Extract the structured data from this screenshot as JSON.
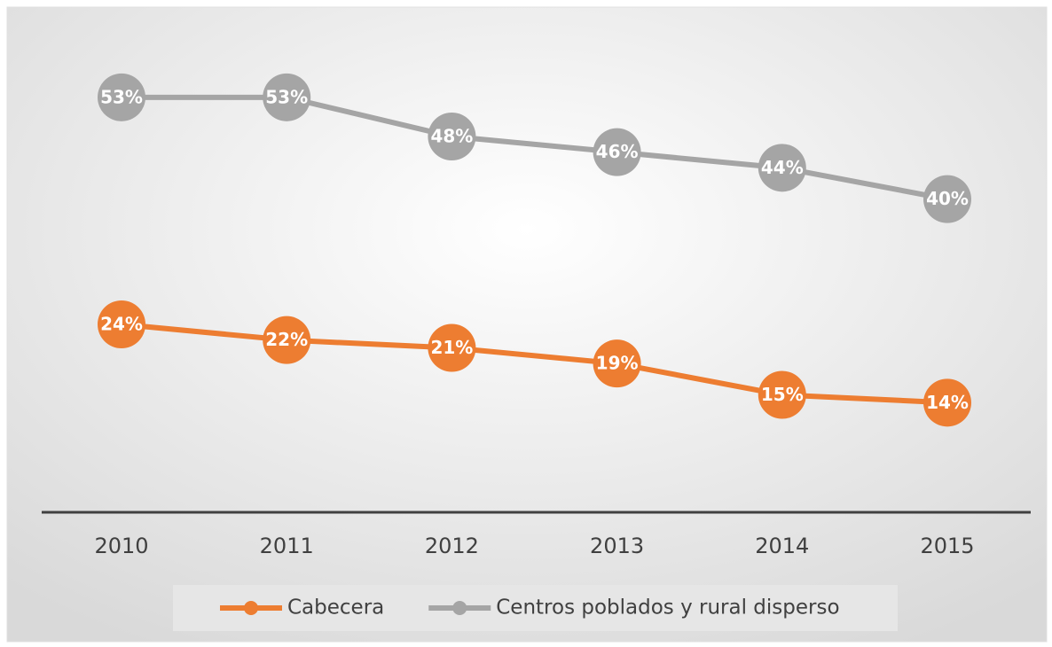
{
  "chart_data": {
    "type": "line",
    "categories": [
      "2010",
      "2011",
      "2012",
      "2013",
      "2014",
      "2015"
    ],
    "series": [
      {
        "name": "Cabecera",
        "color": "#ed7d31",
        "values": [
          24,
          22,
          21,
          19,
          15,
          14
        ],
        "value_labels": [
          "24%",
          "22%",
          "21%",
          "19%",
          "15%",
          "14%"
        ]
      },
      {
        "name": "Centros poblados y rural disperso",
        "color": "#a5a5a5",
        "values": [
          53,
          53,
          48,
          46,
          44,
          40
        ],
        "value_labels": [
          "53%",
          "53%",
          "48%",
          "46%",
          "44%",
          "40%"
        ]
      }
    ],
    "ylim": [
      0,
      60
    ],
    "legend": "bottom"
  }
}
